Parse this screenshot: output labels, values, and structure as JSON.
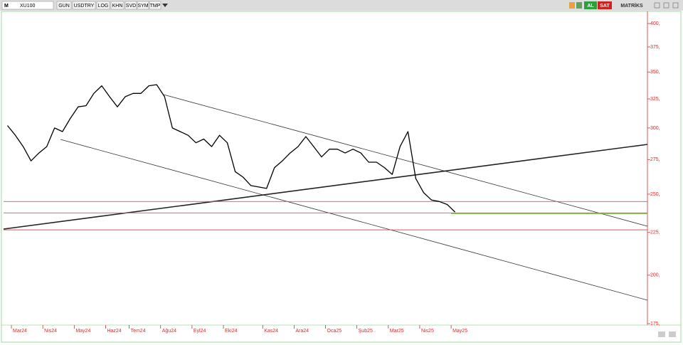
{
  "toolbar": {
    "logo": "M",
    "symbol": "XU100",
    "buttons": [
      "GUN",
      "USDTRY",
      "LOG",
      "KHN",
      "SVD",
      "SYM",
      "TMP"
    ],
    "actions": [
      "AL",
      "SAT"
    ],
    "brand": "MATRİKS"
  },
  "chart_data": {
    "type": "line",
    "log": true,
    "grid": false,
    "categories": [
      null,
      "Mar24",
      null,
      null,
      null,
      "Nis24",
      null,
      null,
      null,
      "May24",
      null,
      null,
      null,
      "Haz24",
      null,
      null,
      "Tem24",
      null,
      null,
      null,
      "Ağu24",
      null,
      null,
      null,
      "Eyl24",
      null,
      null,
      null,
      "Eki24",
      null,
      null,
      null,
      null,
      "Kas24",
      null,
      null,
      null,
      "Ara24",
      null,
      null,
      null,
      "Oca25",
      null,
      null,
      null,
      "Şub25",
      null,
      null,
      null,
      "Mar25",
      null,
      null,
      null,
      "Nis25",
      null,
      null,
      null,
      "May25",
      null,
      null,
      null,
      null,
      null,
      null,
      null,
      null,
      null,
      null,
      null,
      null,
      null,
      null,
      null,
      null,
      null,
      null,
      null,
      null,
      null,
      null,
      null,
      null
    ],
    "series": [
      {
        "name": "XU100",
        "color": "#000000",
        "values": [
          302,
          294,
          285,
          274,
          280,
          285,
          300,
          297,
          308,
          318,
          319,
          330,
          337,
          327,
          318,
          327,
          330,
          330,
          337,
          338,
          327,
          300,
          297,
          294,
          288,
          291,
          285,
          294,
          288,
          266,
          262,
          256,
          255,
          254,
          269,
          274,
          280,
          285,
          293,
          285,
          277,
          283,
          283,
          280,
          283,
          280,
          273,
          273,
          269,
          264,
          285,
          297,
          261,
          251,
          246,
          245,
          243,
          238,
          null,
          null,
          null,
          null,
          null,
          null,
          null,
          null,
          null,
          null,
          null,
          null,
          null,
          null,
          null,
          null,
          null,
          null,
          null,
          null,
          null,
          null,
          null,
          null
        ]
      }
    ],
    "levels": [
      {
        "value": 245,
        "color": "#e05050"
      },
      {
        "value": 237.4,
        "color": "#e05050"
      },
      {
        "value": 226.6,
        "color": "#e05050"
      },
      {
        "value": 237,
        "color": "#7cc04a"
      }
    ],
    "ylim": [
      175,
      412
    ],
    "yticks": [
      {
        "value": 400,
        "label": "400,"
      },
      {
        "value": 375,
        "label": "375,"
      },
      {
        "value": 350,
        "label": "350,"
      },
      {
        "value": 325,
        "label": "325,"
      },
      {
        "value": 300,
        "label": "300,"
      },
      {
        "value": 275,
        "label": "275,"
      },
      {
        "value": 250,
        "label": "250,"
      },
      {
        "value": 225,
        "label": "225,"
      },
      {
        "value": 200,
        "label": "200,"
      },
      {
        "value": 175,
        "label": "175,"
      }
    ],
    "axis_color": "#d03030"
  }
}
